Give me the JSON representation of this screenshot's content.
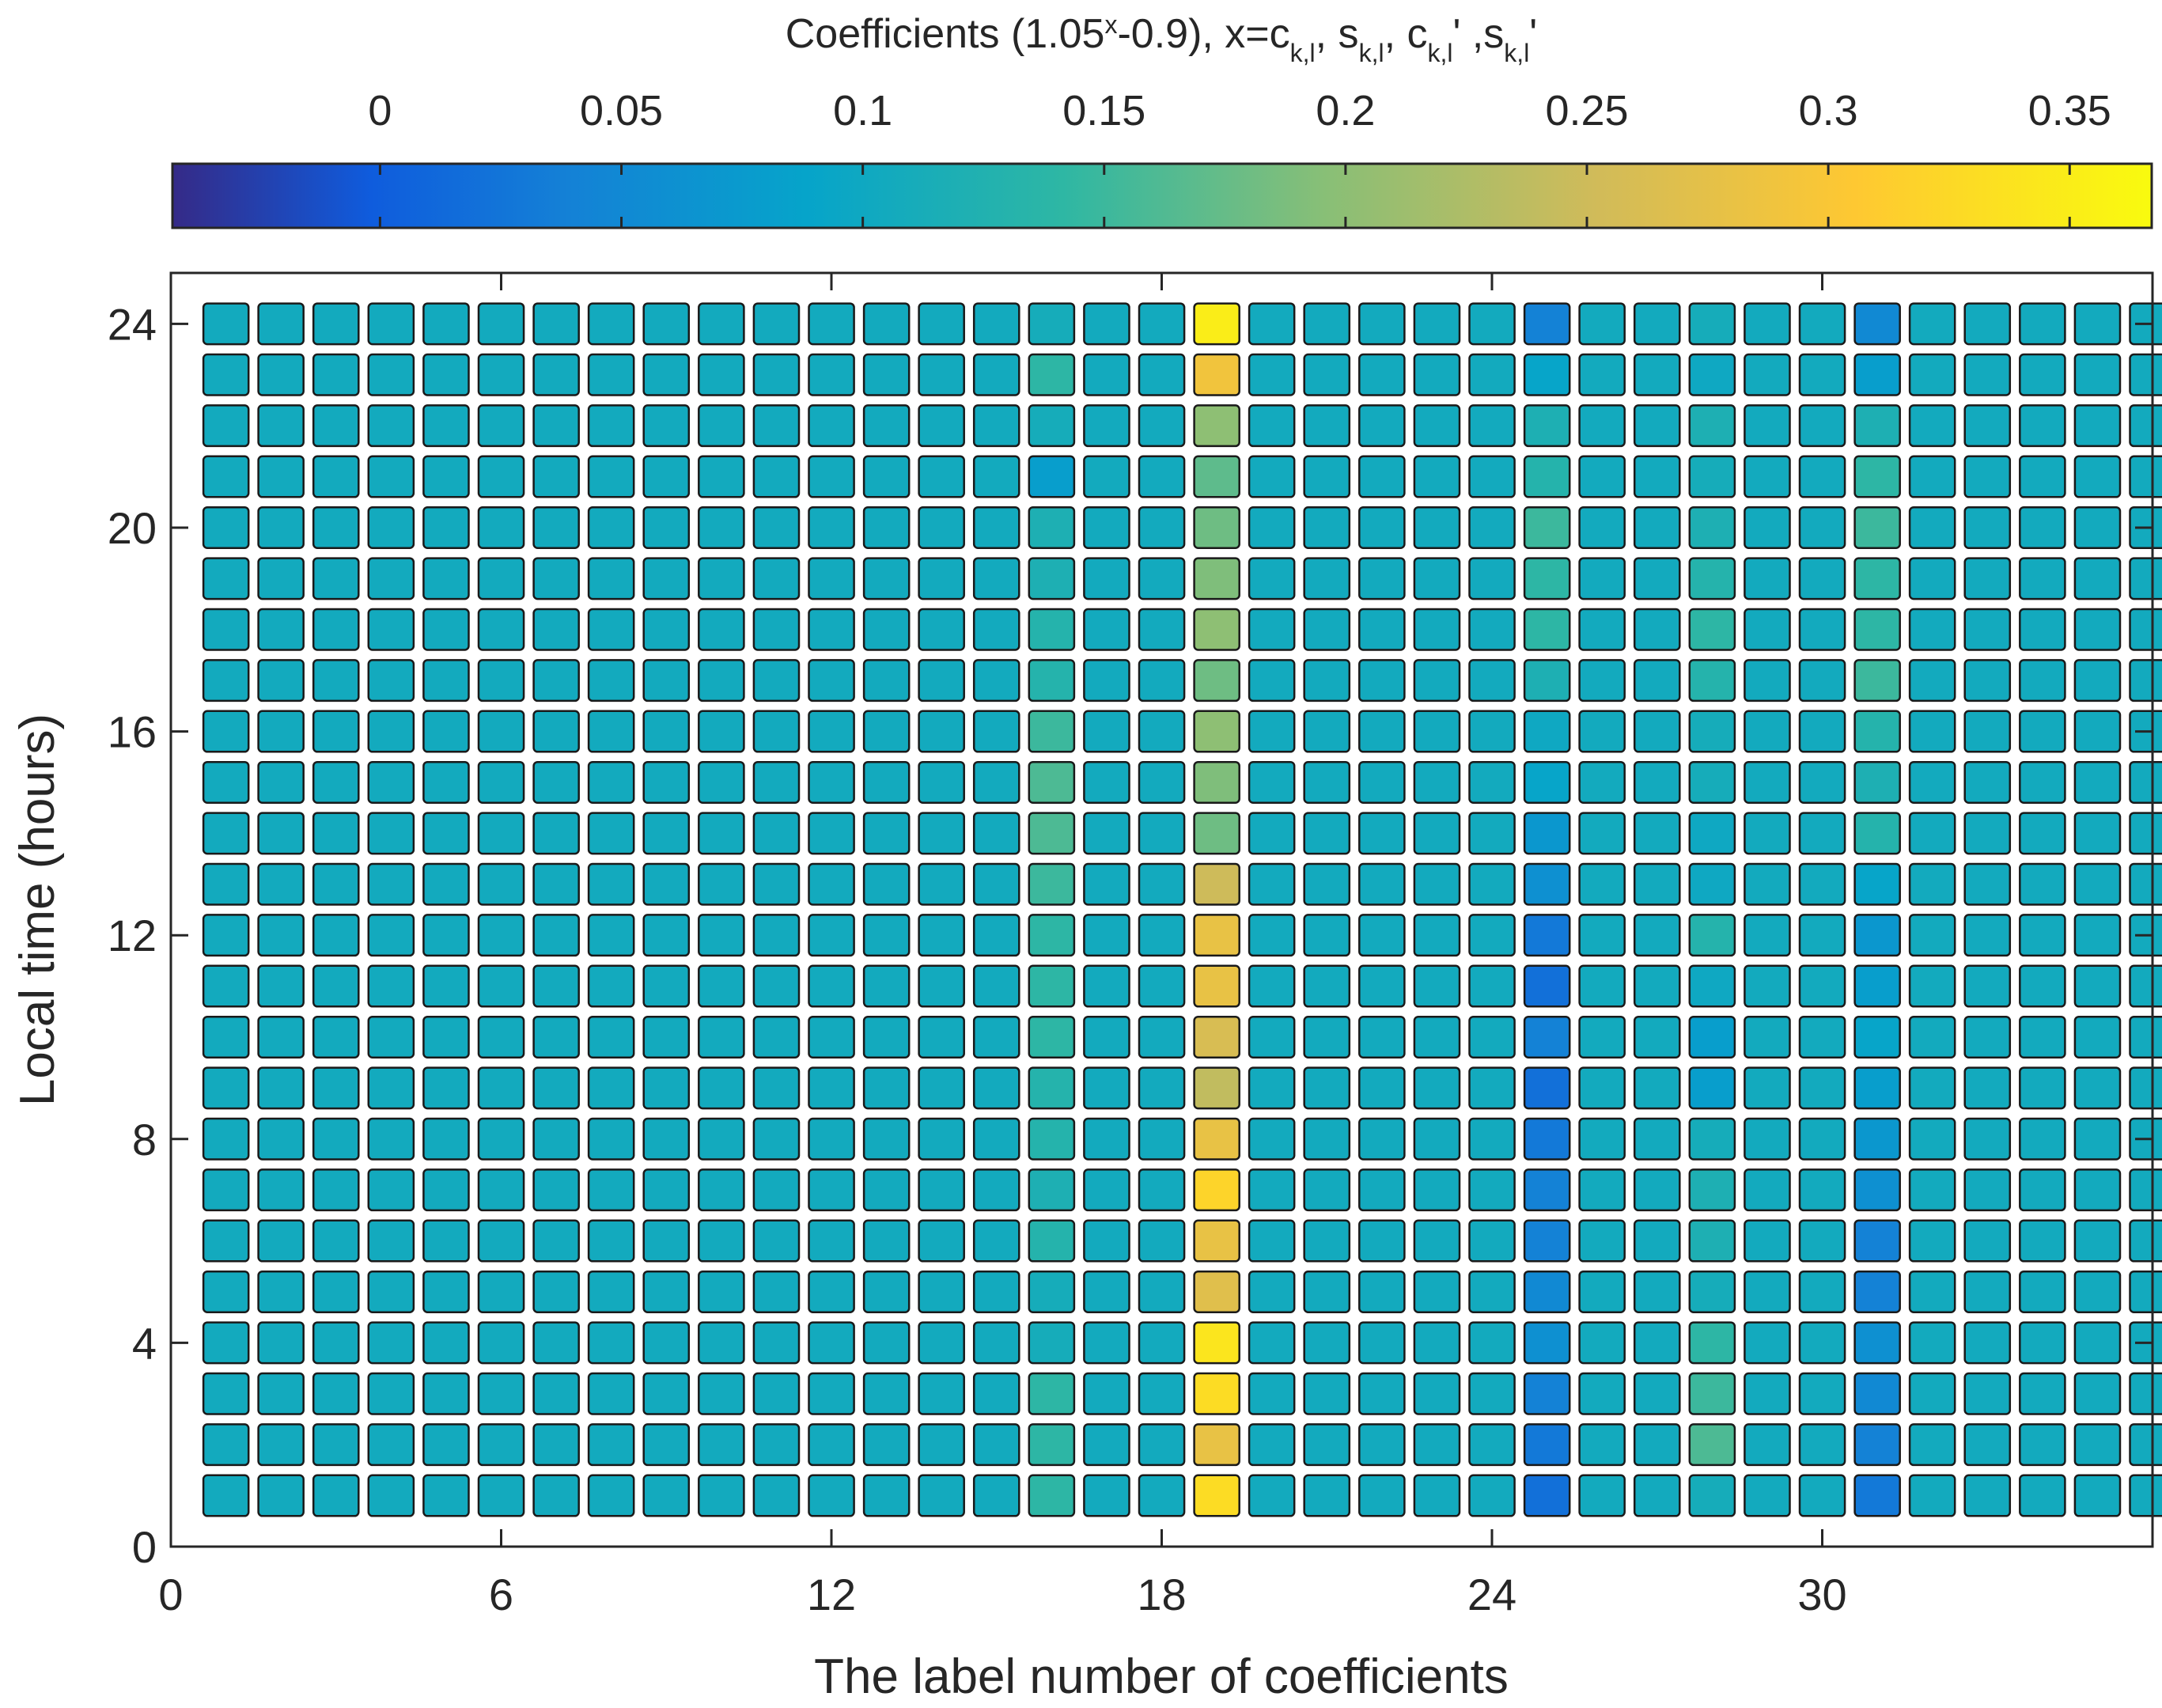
{
  "chart_data": {
    "type": "heatmap",
    "title": "Coefficients (1.05^x-0.9), x=c_{k,l}, s_{k,l}, c_{k,l}', s_{k,l}'",
    "title_parts": {
      "prefix": "Coefficients (1.05",
      "exp": "x",
      "mid1": "-0.9), x=c",
      "sub1": "k,l",
      "mid2": ", s",
      "sub2": "k,l",
      "mid3": ", c",
      "sub3": "k,l",
      "mid4": "'  ,s",
      "sub4": "k,l",
      "suffix": "'"
    },
    "xlabel": "The label number of coefficients",
    "ylabel": "Local time (hours)",
    "xlim": [
      0,
      36
    ],
    "ylim": [
      0,
      25
    ],
    "xticks": [
      "0",
      "6",
      "12",
      "18",
      "24",
      "30"
    ],
    "yticks": [
      "0",
      "4",
      "8",
      "12",
      "16",
      "20",
      "24"
    ],
    "colorbar": {
      "range": [
        -0.043,
        0.367
      ],
      "ticks": [
        "0",
        "0.05",
        "0.1",
        "0.15",
        "0.2",
        "0.25",
        "0.3",
        "0.35"
      ],
      "colormap": "parula"
    },
    "base_value": 0.105,
    "x": [
      1,
      2,
      3,
      4,
      5,
      6,
      7,
      8,
      9,
      10,
      11,
      12,
      13,
      14,
      15,
      16,
      17,
      18,
      19,
      20,
      21,
      22,
      23,
      24,
      25,
      26,
      27,
      28,
      29,
      30,
      31,
      32,
      33,
      34,
      35,
      36
    ],
    "y": [
      1,
      2,
      3,
      4,
      5,
      6,
      7,
      8,
      9,
      10,
      11,
      12,
      13,
      14,
      15,
      16,
      17,
      18,
      19,
      20,
      21,
      22,
      23,
      24
    ],
    "columns": [
      {
        "x": 16,
        "values": [
          0.14,
          0.14,
          0.14,
          0.11,
          0.11,
          0.13,
          0.12,
          0.13,
          0.13,
          0.14,
          0.14,
          0.14,
          0.15,
          0.16,
          0.16,
          0.15,
          0.13,
          0.13,
          0.12,
          0.12,
          0.08,
          0.11,
          0.14,
          0.11
        ]
      },
      {
        "x": 19,
        "values": [
          0.33,
          0.28,
          0.33,
          0.34,
          0.27,
          0.28,
          0.32,
          0.28,
          0.24,
          0.26,
          0.28,
          0.28,
          0.25,
          0.18,
          0.19,
          0.2,
          0.18,
          0.2,
          0.19,
          0.18,
          0.17,
          0.2,
          0.29,
          0.35
        ]
      },
      {
        "x": 25,
        "values": [
          0.02,
          0.03,
          0.04,
          0.06,
          0.05,
          0.04,
          0.04,
          0.03,
          0.02,
          0.04,
          0.02,
          0.03,
          0.06,
          0.07,
          0.09,
          0.1,
          0.12,
          0.14,
          0.14,
          0.15,
          0.13,
          0.12,
          0.09,
          0.04
        ]
      },
      {
        "x": 28,
        "values": [
          0.11,
          0.16,
          0.15,
          0.14,
          0.11,
          0.12,
          0.12,
          0.11,
          0.08,
          0.08,
          0.1,
          0.13,
          0.1,
          0.1,
          0.11,
          0.11,
          0.13,
          0.14,
          0.13,
          0.12,
          0.11,
          0.12,
          0.1,
          0.11
        ]
      },
      {
        "x": 31,
        "values": [
          0.03,
          0.04,
          0.05,
          0.06,
          0.04,
          0.04,
          0.06,
          0.07,
          0.08,
          0.09,
          0.08,
          0.07,
          0.09,
          0.13,
          0.12,
          0.13,
          0.15,
          0.14,
          0.14,
          0.15,
          0.14,
          0.12,
          0.08,
          0.05
        ]
      }
    ]
  }
}
